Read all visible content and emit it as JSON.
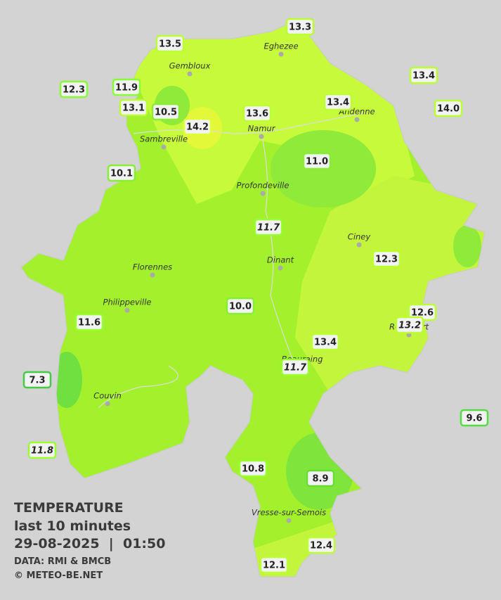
{
  "title": "TEMPERATURE",
  "subtitle": "last 10 minutes",
  "date": "29-08-2025",
  "separator": "|",
  "time": "01:50",
  "source": "DATA: RMI & BMCB",
  "credit": "© METEO-BE.NET",
  "towns": [
    "Gembloux",
    "Eghezee",
    "Andenne",
    "Namur",
    "Sambreville",
    "Profondeville",
    "Ciney",
    "Dinant",
    "Florennes",
    "Philippeville",
    "Rochefort",
    "Beauraing",
    "Couvin",
    "Vresse-sur-Semois"
  ],
  "stations": [
    "12.3",
    "11.9",
    "13.5",
    "13.3",
    "13.4",
    "14.0",
    "13.1",
    "10.5",
    "14.2",
    "13.6",
    "13.4",
    "10.1",
    "11.0",
    "11.7",
    "12.3",
    "10.0",
    "12.6",
    "13.2",
    "11.6",
    "13.4",
    "11.7",
    "7.3",
    "9.6",
    "11.8",
    "10.8",
    "8.9",
    "12.4",
    "12.1"
  ]
}
